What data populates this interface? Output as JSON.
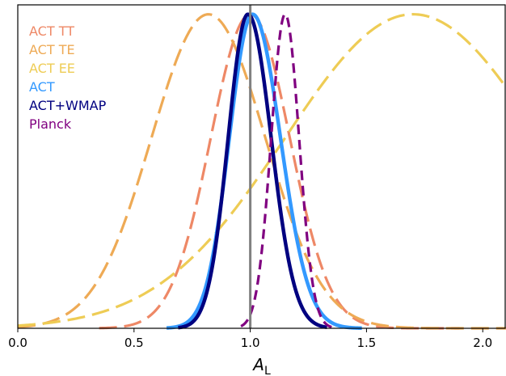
{
  "chart_data": {
    "type": "line",
    "title": "",
    "xlabel": "A",
    "xlabel_subscript": "L",
    "ylabel": "",
    "xlim": [
      0.0,
      2.1
    ],
    "ylim": [
      0,
      1.03
    ],
    "xticks": [
      "0.0",
      "0.5",
      "1.0",
      "1.5",
      "2.0"
    ],
    "xtick_values": [
      0.0,
      0.5,
      1.0,
      1.5,
      2.0
    ],
    "y_ticks_shown": false,
    "grid": false,
    "legend_position": "top-left",
    "reference_line": {
      "x": 1.0,
      "color": "#808080"
    },
    "series": [
      {
        "name": "ACT TT",
        "color": "#ee8866",
        "dash": "long",
        "peak_x": 1.0,
        "sigma": 0.17,
        "x_range": [
          0.35,
          1.9
        ]
      },
      {
        "name": "ACT TE",
        "color": "#eeaa55",
        "dash": "long",
        "peak_x": 0.82,
        "sigma": 0.245,
        "x_range": [
          0.0,
          2.1
        ]
      },
      {
        "name": "ACT EE",
        "color": "#eecc55",
        "dash": "long",
        "peak_x": 1.7,
        "sigma": 0.55,
        "x_range": [
          0.0,
          2.1
        ]
      },
      {
        "name": "ACT",
        "color": "#3399ff",
        "dash": "solid",
        "peak_x": 1.01,
        "sigma_left": 0.1,
        "sigma_right": 0.12,
        "x_range": [
          0.64,
          1.48
        ]
      },
      {
        "name": "ACT+WMAP",
        "color": "#000080",
        "dash": "solid",
        "peak_x": 0.99,
        "sigma_left": 0.085,
        "sigma_right": 0.1,
        "x_range": [
          0.69,
          1.33
        ]
      },
      {
        "name": "Planck",
        "color": "#800080",
        "dash": "short",
        "peak_x": 1.15,
        "sigma": 0.06,
        "x_range": [
          0.96,
          1.35
        ]
      }
    ]
  }
}
